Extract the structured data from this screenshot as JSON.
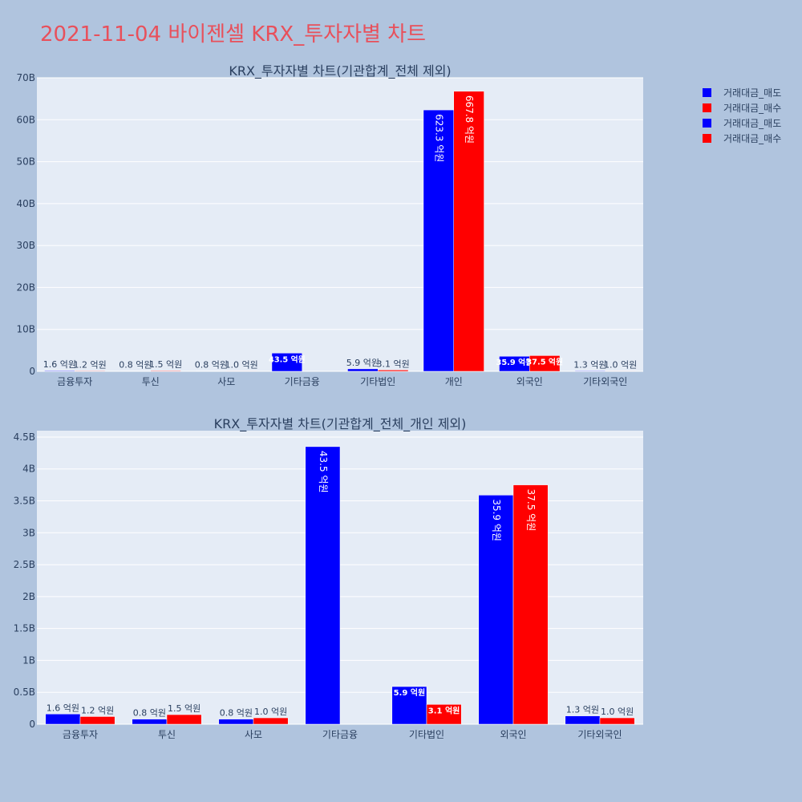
{
  "page_title": "2021-11-04 바이젠셀 KRX_투자자별 차트",
  "legend": {
    "items": [
      {
        "label": "거래대금_매도",
        "color": "#0000ff"
      },
      {
        "label": "거래대금_매수",
        "color": "#ff0000"
      },
      {
        "label": "거래대금_매도",
        "color": "#0000ff"
      },
      {
        "label": "거래대금_매수",
        "color": "#ff0000"
      }
    ]
  },
  "chart_data": [
    {
      "type": "bar",
      "title": "KRX_투자자별 차트(기관합계_전체 제외)",
      "categories": [
        "금융투자",
        "투신",
        "사모",
        "기타금융",
        "기타법인",
        "개인",
        "외국인",
        "기타외국인"
      ],
      "series": [
        {
          "name": "거래대금_매도",
          "color": "#0000ff",
          "values": [
            160000000,
            80000000,
            80000000,
            4350000000,
            590000000,
            62330000000,
            3590000000,
            130000000
          ],
          "labels": [
            "1.6 억원",
            "0.8 억원",
            "0.8 억원",
            "43.5 억원",
            "5.9 억원",
            "623.3 억원",
            "35.9 억원",
            "1.3 억원"
          ]
        },
        {
          "name": "거래대금_매수",
          "color": "#ff0000",
          "values": [
            120000000,
            150000000,
            100000000,
            0,
            310000000,
            66780000000,
            3750000000,
            100000000
          ],
          "labels": [
            "1.2 억원",
            "1.5 억원",
            "1.0 억원",
            "",
            "3.1 억원",
            "667.8 억원",
            "37.5 억원",
            "1.0 억원"
          ]
        }
      ],
      "ylim": [
        0,
        70000000000
      ],
      "yticks": [
        {
          "v": 0,
          "label": "0"
        },
        {
          "v": 10000000000,
          "label": "10B"
        },
        {
          "v": 20000000000,
          "label": "20B"
        },
        {
          "v": 30000000000,
          "label": "30B"
        },
        {
          "v": 40000000000,
          "label": "40B"
        },
        {
          "v": 50000000000,
          "label": "50B"
        },
        {
          "v": 60000000000,
          "label": "60B"
        },
        {
          "v": 70000000000,
          "label": "70B"
        }
      ]
    },
    {
      "type": "bar",
      "title": "KRX_투자자별 차트(기관합계_전체_개인 제외)",
      "categories": [
        "금융투자",
        "투신",
        "사모",
        "기타금융",
        "기타법인",
        "외국인",
        "기타외국인"
      ],
      "series": [
        {
          "name": "거래대금_매도",
          "color": "#0000ff",
          "values": [
            160000000,
            80000000,
            80000000,
            4350000000,
            590000000,
            3590000000,
            130000000
          ],
          "labels": [
            "1.6 억원",
            "0.8 억원",
            "0.8 억원",
            "43.5 억원",
            "5.9 억원",
            "35.9 억원",
            "1.3 억원"
          ]
        },
        {
          "name": "거래대금_매수",
          "color": "#ff0000",
          "values": [
            120000000,
            150000000,
            100000000,
            0,
            310000000,
            3750000000,
            100000000
          ],
          "labels": [
            "1.2 억원",
            "1.5 억원",
            "1.0 억원",
            "",
            "3.1 억원",
            "37.5 억원",
            "1.0 억원"
          ]
        }
      ],
      "ylim": [
        0,
        4600000000
      ],
      "yticks": [
        {
          "v": 0,
          "label": "0"
        },
        {
          "v": 500000000,
          "label": "0.5B"
        },
        {
          "v": 1000000000,
          "label": "1B"
        },
        {
          "v": 1500000000,
          "label": "1.5B"
        },
        {
          "v": 2000000000,
          "label": "2B"
        },
        {
          "v": 2500000000,
          "label": "2.5B"
        },
        {
          "v": 3000000000,
          "label": "3B"
        },
        {
          "v": 3500000000,
          "label": "3.5B"
        },
        {
          "v": 4000000000,
          "label": "4B"
        },
        {
          "v": 4500000000,
          "label": "4.5B"
        }
      ]
    }
  ]
}
